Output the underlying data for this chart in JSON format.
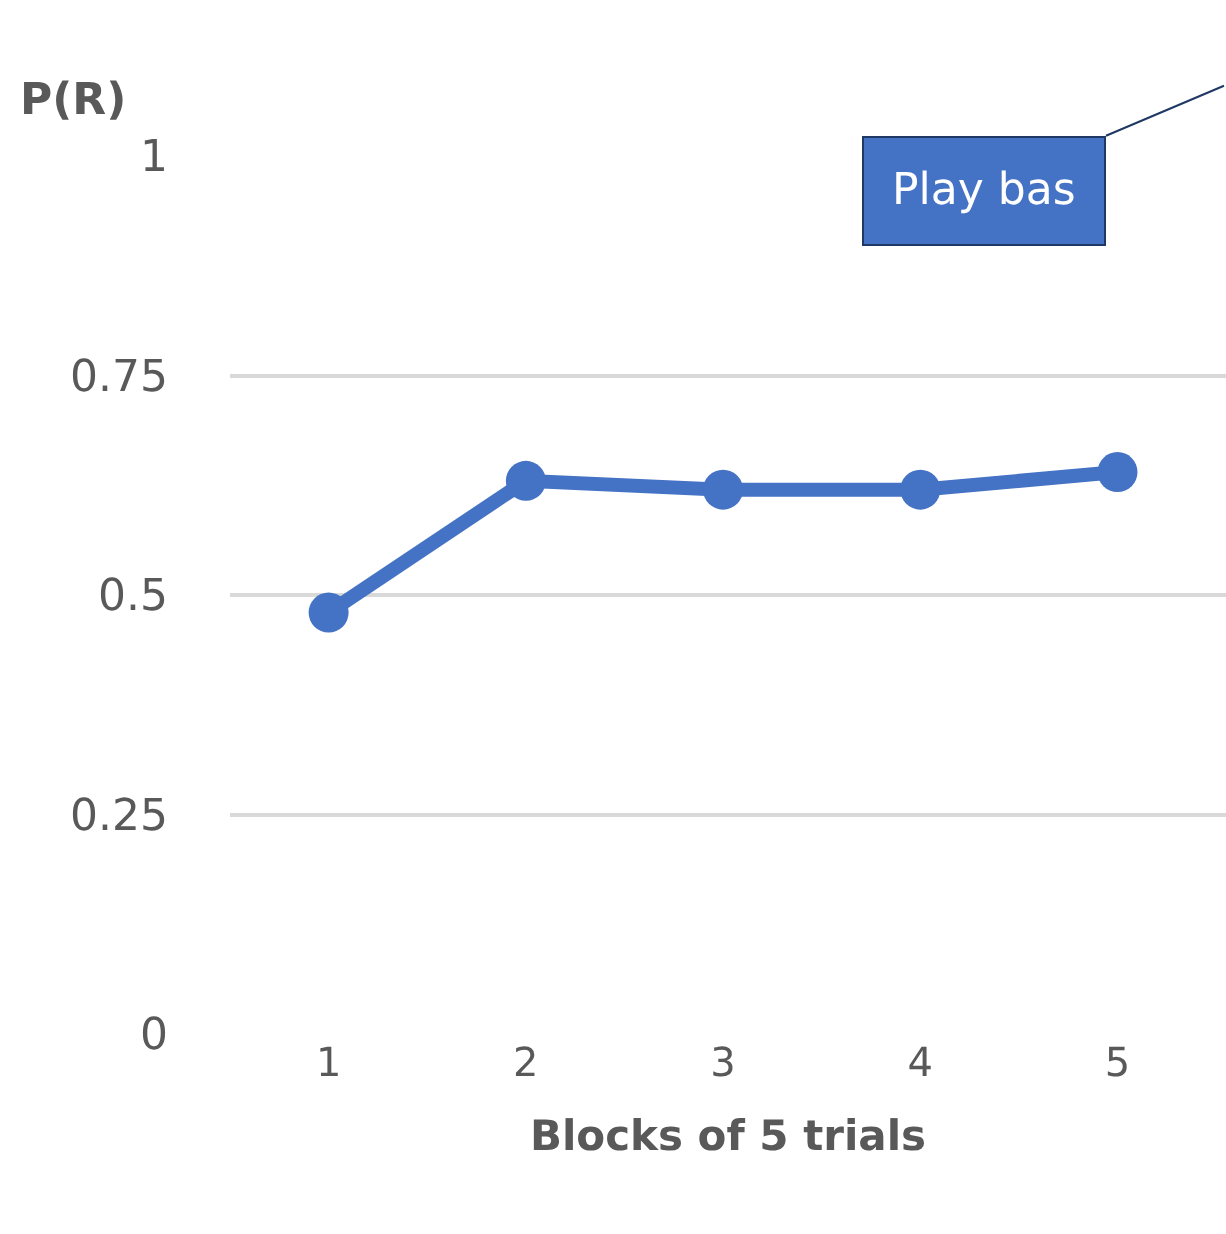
{
  "chart_data": {
    "type": "line",
    "ylabel": "P(R)",
    "xlabel": "Blocks of 5 trials",
    "categories": [
      "1",
      "2",
      "3",
      "4",
      "5"
    ],
    "series": [
      {
        "color": "#4472c4",
        "values": [
          0.48,
          0.63,
          0.62,
          0.62,
          0.64
        ]
      }
    ],
    "ylim": [
      0,
      1
    ],
    "yticks": [
      0,
      0.25,
      0.5,
      0.75,
      1
    ],
    "grid": "y",
    "marker": "circle",
    "line_style": "solid",
    "annotations": [
      "Play bas"
    ]
  }
}
